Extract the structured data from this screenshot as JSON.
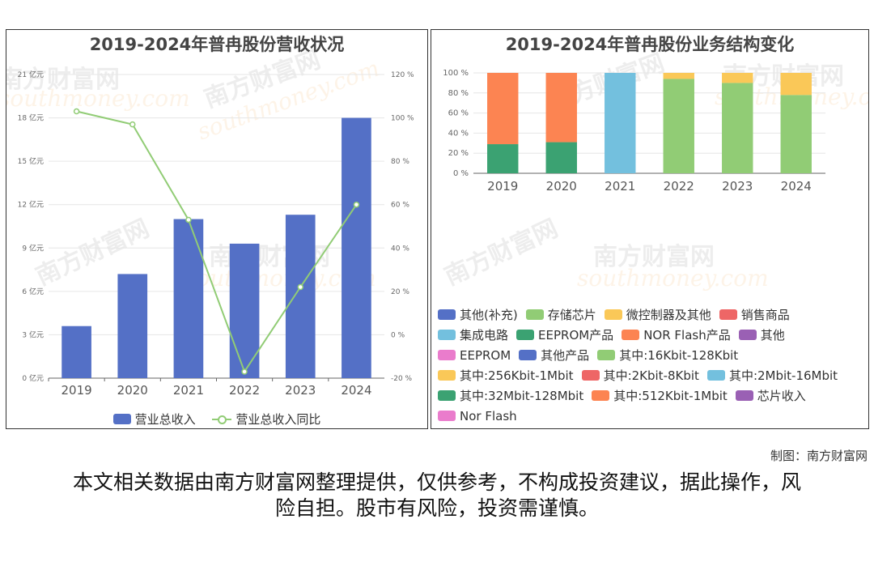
{
  "credit": "制图：南方财富网",
  "disclaimer": "本文相关数据由南方财富网整理提供，仅供参考，不构成投资建议，据此操作，风险自担。股市有风险，投资需谨慎。",
  "watermark": {
    "cn": "南方财富网",
    "en": "southmoney.com"
  },
  "chart_data": [
    {
      "type": "bar",
      "title": "2019-2024年普冉股份营收状况",
      "categories": [
        "2019",
        "2020",
        "2021",
        "2022",
        "2023",
        "2024"
      ],
      "y_axis_left": {
        "ticks": [
          "0 亿元",
          "3 亿元",
          "6 亿元",
          "9 亿元",
          "12 亿元",
          "15 亿元",
          "18 亿元",
          "21 亿元"
        ],
        "range": [
          0,
          21
        ]
      },
      "y_axis_right": {
        "ticks": [
          "-20 %",
          "0 %",
          "20 %",
          "40 %",
          "60 %",
          "80 %",
          "100 %",
          "120 %"
        ],
        "range": [
          -20,
          120
        ]
      },
      "series": [
        {
          "name": "营业总收入",
          "type": "bar",
          "color": "#5470c6",
          "values": [
            3.6,
            7.2,
            11.0,
            9.3,
            11.3,
            18.0
          ]
        },
        {
          "name": "营业总收入同比",
          "type": "line",
          "color": "#91cc75",
          "values": [
            103,
            97,
            53,
            -17,
            22,
            60
          ]
        }
      ],
      "legend": "bottom-center"
    },
    {
      "type": "bar",
      "stacked": true,
      "title": "2019-2024年普冉股份业务结构变化",
      "categories": [
        "2019",
        "2020",
        "2021",
        "2022",
        "2023",
        "2024"
      ],
      "y_axis": {
        "ticks": [
          "0 %",
          "20 %",
          "40 %",
          "60 %",
          "80 %",
          "100 %"
        ],
        "range": [
          0,
          100
        ]
      },
      "series": [
        {
          "name": "EEPROM产品",
          "color": "#3ba272",
          "values": [
            29,
            31,
            0,
            0,
            0,
            0
          ]
        },
        {
          "name": "NOR Flash产品",
          "color": "#fc8452",
          "values": [
            71,
            69,
            0,
            0,
            0,
            0
          ]
        },
        {
          "name": "集成电路",
          "color": "#73c0de",
          "values": [
            0,
            0,
            100,
            0,
            0,
            0
          ]
        },
        {
          "name": "存储芯片",
          "color": "#91cc75",
          "values": [
            0,
            0,
            0,
            94,
            90,
            78
          ]
        },
        {
          "name": "微控制器及其他",
          "color": "#fac858",
          "values": [
            0,
            0,
            0,
            6,
            10,
            22
          ]
        }
      ],
      "legend_entries": [
        {
          "name": "其他(补充)",
          "color": "#5470c6"
        },
        {
          "name": "存储芯片",
          "color": "#91cc75"
        },
        {
          "name": "微控制器及其他",
          "color": "#fac858"
        },
        {
          "name": "销售商品",
          "color": "#ee6666"
        },
        {
          "name": "集成电路",
          "color": "#73c0de"
        },
        {
          "name": "EEPROM产品",
          "color": "#3ba272"
        },
        {
          "name": "NOR Flash产品",
          "color": "#fc8452"
        },
        {
          "name": "其他",
          "color": "#9a60b4"
        },
        {
          "name": "EEPROM",
          "color": "#ea7ccc"
        },
        {
          "name": "其他产品",
          "color": "#5470c6"
        },
        {
          "name": "其中:16Kbit-128Kbit",
          "color": "#91cc75"
        },
        {
          "name": "其中:256Kbit-1Mbit",
          "color": "#fac858"
        },
        {
          "name": "其中:2Kbit-8Kbit",
          "color": "#ee6666"
        },
        {
          "name": "其中:2Mbit-16Mbit",
          "color": "#73c0de"
        },
        {
          "name": "其中:32Mbit-128Mbit",
          "color": "#3ba272"
        },
        {
          "name": "其中:512Kbit-1Mbit",
          "color": "#fc8452"
        },
        {
          "name": "芯片收入",
          "color": "#9a60b4"
        },
        {
          "name": "Nor Flash",
          "color": "#ea7ccc"
        }
      ]
    }
  ]
}
